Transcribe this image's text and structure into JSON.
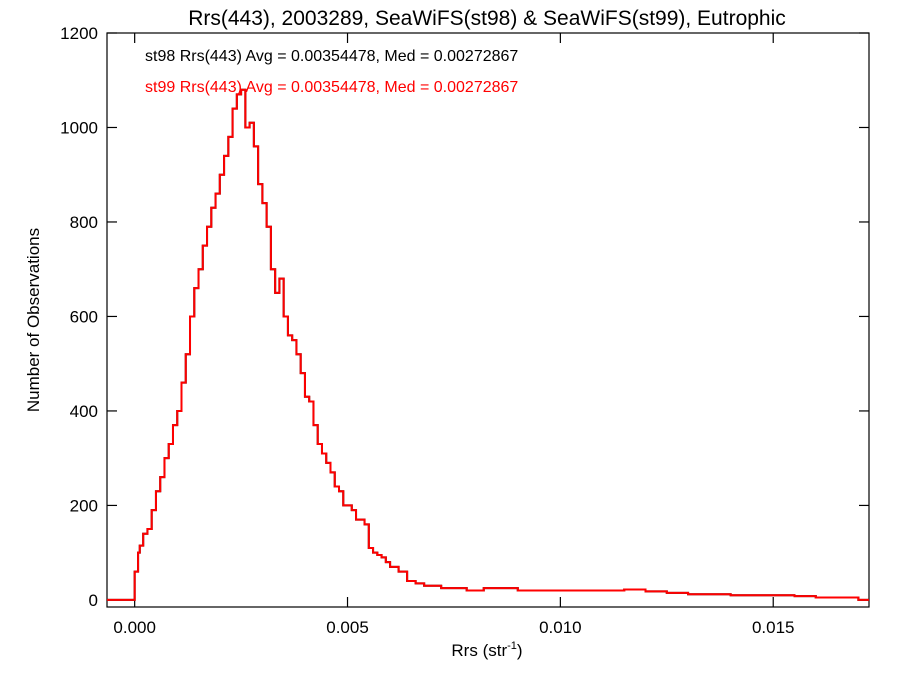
{
  "chart_data": {
    "type": "histogram",
    "title": "Rrs(443), 2003289, SeaWiFS(st98) & SeaWiFS(st99), Eutrophic",
    "xlabel": "Rrs (str",
    "xlabel_sup": "-1",
    "xlabel_close": ")",
    "ylabel": "Number of Observations",
    "xlim": [
      -0.00065,
      0.01725
    ],
    "ylim": [
      -15,
      1200
    ],
    "x_ticks": [
      0.0,
      0.005,
      0.01,
      0.015
    ],
    "x_tick_labels": [
      "0.000",
      "0.005",
      "0.010",
      "0.015"
    ],
    "y_ticks": [
      0,
      200,
      400,
      600,
      800,
      1000,
      1200
    ],
    "y_tick_labels": [
      "0",
      "200",
      "400",
      "600",
      "800",
      "1000",
      "1200"
    ],
    "grid": false,
    "legend_position": "top-left",
    "colors": {
      "st98": "#000000",
      "st99": "#ff0000"
    },
    "series": [
      {
        "name": "st98",
        "label": "st98 Rrs(443) Avg = 0.00354478, Med = 0.00272867",
        "color": "#000000",
        "x": [
          -0.00065,
          0.0,
          8e-05,
          0.00012,
          0.0002,
          0.0003,
          0.0004,
          0.0005,
          0.0006,
          0.0007,
          0.0008,
          0.0009,
          0.001,
          0.0011,
          0.0012,
          0.0013,
          0.0014,
          0.0015,
          0.0016,
          0.0017,
          0.0018,
          0.0019,
          0.002,
          0.0021,
          0.0022,
          0.0023,
          0.0024,
          0.0025,
          0.0026,
          0.0027,
          0.0028,
          0.0029,
          0.003,
          0.0031,
          0.0032,
          0.0033,
          0.0034,
          0.0035,
          0.0036,
          0.0037,
          0.0038,
          0.0039,
          0.004,
          0.0041,
          0.0042,
          0.0043,
          0.0044,
          0.0045,
          0.0046,
          0.0047,
          0.0048,
          0.0049,
          0.005,
          0.0051,
          0.0052,
          0.0053,
          0.0054,
          0.0055,
          0.0056,
          0.0057,
          0.0058,
          0.0059,
          0.006,
          0.0062,
          0.0064,
          0.0066,
          0.0068,
          0.007,
          0.0072,
          0.0075,
          0.0078,
          0.0082,
          0.0086,
          0.009,
          0.0095,
          0.01,
          0.0105,
          0.011,
          0.0115,
          0.012,
          0.0125,
          0.013,
          0.0135,
          0.014,
          0.0145,
          0.015,
          0.0155,
          0.016,
          0.0165,
          0.017,
          0.01725
        ],
        "y": [
          0,
          60,
          100,
          115,
          140,
          150,
          190,
          230,
          260,
          300,
          330,
          370,
          400,
          460,
          520,
          600,
          660,
          700,
          750,
          790,
          830,
          860,
          900,
          940,
          980,
          1040,
          1070,
          1080,
          1000,
          1010,
          960,
          880,
          840,
          790,
          700,
          650,
          680,
          600,
          560,
          550,
          520,
          480,
          430,
          420,
          370,
          330,
          310,
          290,
          270,
          240,
          230,
          200,
          200,
          190,
          170,
          170,
          160,
          110,
          100,
          95,
          90,
          80,
          70,
          60,
          40,
          35,
          30,
          30,
          25,
          25,
          20,
          25,
          25,
          20,
          20,
          20,
          20,
          20,
          22,
          18,
          15,
          12,
          12,
          10,
          10,
          10,
          8,
          5,
          5,
          0,
          0
        ]
      },
      {
        "name": "st99",
        "label": "st99 Rrs(443) Avg = 0.00354478, Med = 0.00272867",
        "color": "#ff0000",
        "x": [
          -0.00065,
          0.0,
          8e-05,
          0.00012,
          0.0002,
          0.0003,
          0.0004,
          0.0005,
          0.0006,
          0.0007,
          0.0008,
          0.0009,
          0.001,
          0.0011,
          0.0012,
          0.0013,
          0.0014,
          0.0015,
          0.0016,
          0.0017,
          0.0018,
          0.0019,
          0.002,
          0.0021,
          0.0022,
          0.0023,
          0.0024,
          0.0025,
          0.0026,
          0.0027,
          0.0028,
          0.0029,
          0.003,
          0.0031,
          0.0032,
          0.0033,
          0.0034,
          0.0035,
          0.0036,
          0.0037,
          0.0038,
          0.0039,
          0.004,
          0.0041,
          0.0042,
          0.0043,
          0.0044,
          0.0045,
          0.0046,
          0.0047,
          0.0048,
          0.0049,
          0.005,
          0.0051,
          0.0052,
          0.0053,
          0.0054,
          0.0055,
          0.0056,
          0.0057,
          0.0058,
          0.0059,
          0.006,
          0.0062,
          0.0064,
          0.0066,
          0.0068,
          0.007,
          0.0072,
          0.0075,
          0.0078,
          0.0082,
          0.0086,
          0.009,
          0.0095,
          0.01,
          0.0105,
          0.011,
          0.0115,
          0.012,
          0.0125,
          0.013,
          0.0135,
          0.014,
          0.0145,
          0.015,
          0.0155,
          0.016,
          0.0165,
          0.017,
          0.01725
        ],
        "y": [
          0,
          60,
          100,
          115,
          140,
          150,
          190,
          230,
          260,
          300,
          330,
          370,
          400,
          460,
          520,
          600,
          660,
          700,
          750,
          790,
          830,
          860,
          900,
          940,
          980,
          1040,
          1070,
          1080,
          1000,
          1010,
          960,
          880,
          840,
          790,
          700,
          650,
          680,
          600,
          560,
          550,
          520,
          480,
          430,
          420,
          370,
          330,
          310,
          290,
          270,
          240,
          230,
          200,
          200,
          190,
          170,
          170,
          160,
          110,
          100,
          95,
          90,
          80,
          70,
          60,
          40,
          35,
          30,
          30,
          25,
          25,
          20,
          25,
          25,
          20,
          20,
          20,
          20,
          20,
          22,
          18,
          15,
          12,
          12,
          10,
          10,
          10,
          8,
          5,
          5,
          0,
          0
        ]
      }
    ]
  }
}
